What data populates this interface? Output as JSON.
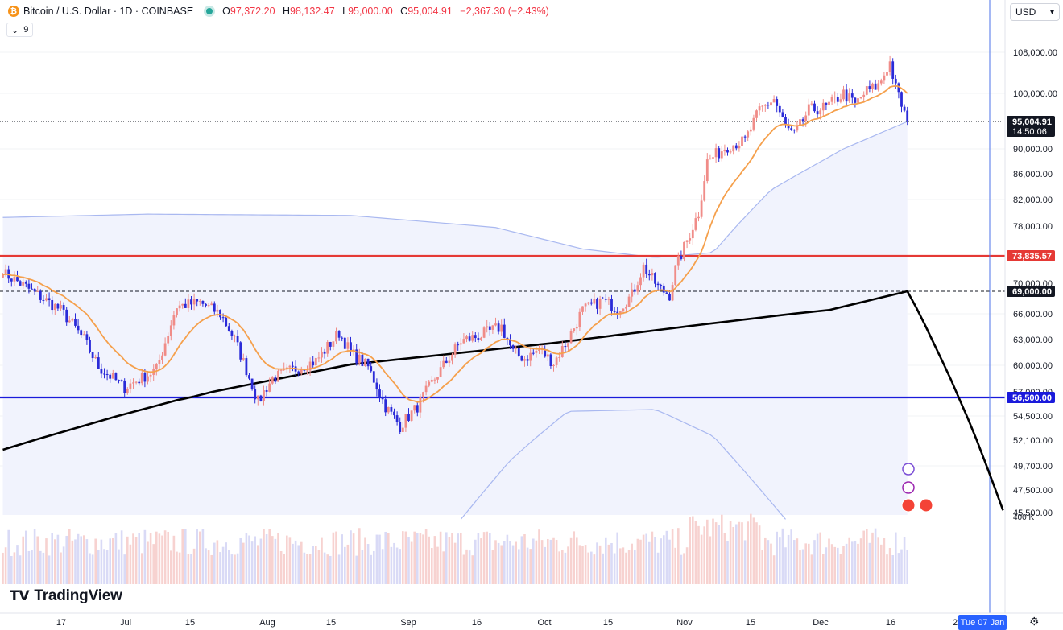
{
  "header": {
    "coin_icon": "bitcoin-icon",
    "symbol": "Bitcoin / U.S. Dollar · 1D · COINBASE",
    "status_color": "#26a69a",
    "open_key": "O",
    "open": "97,372.20",
    "high_key": "H",
    "high": "98,132.47",
    "low_key": "L",
    "low": "95,000.00",
    "close_key": "C",
    "close": "95,004.91",
    "change": "−2,367.30 (−2.43%)",
    "indicator_chevron": "chevron-down-icon",
    "indicator_count": "9"
  },
  "currency": {
    "label": "USD",
    "icon": "chevron-down-icon"
  },
  "logo": {
    "mark": "TV",
    "text": "TradingView"
  },
  "settings_icon": "gear-icon",
  "colors": {
    "up": "#f08c88",
    "down": "#2b2bd8",
    "ema": "#f5a04c",
    "ma200": "#000000",
    "bands": "#a9b8f0",
    "band_fill": "#f1f3fd",
    "resistance": "#e53935",
    "support": "#1a1adb",
    "crosshair": "#4b72e8"
  },
  "chart_data": {
    "type": "candlestick",
    "title": "Bitcoin / U.S. Dollar · 1D · COINBASE",
    "xlabel": "",
    "ylabel": "",
    "ylim": [
      44900,
      111000
    ],
    "y_ticks": [
      "108,000.00",
      "100,000.00",
      "90,000.00",
      "86,000.00",
      "82,000.00",
      "78,000.00",
      "70,000.00",
      "66,000.00",
      "63,000.00",
      "60,000.00",
      "57,000.00",
      "54,500.00",
      "52,100.00",
      "49,700.00",
      "47,500.00",
      "45,500.00"
    ],
    "volume_label": "400 K",
    "x_ticks": [
      "17",
      "Jul",
      "15",
      "Aug",
      "15",
      "Sep",
      "16",
      "Oct",
      "15",
      "Nov",
      "15",
      "Dec",
      "16",
      "2"
    ],
    "crosshair_date": "Tue 07 Jan",
    "price_labels": [
      {
        "name": "last",
        "value": 95004.91,
        "text": "95,004.91",
        "sub": "14:50:06",
        "color": "#131722"
      },
      {
        "name": "resistance",
        "value": 73835.57,
        "text": "73,835.57",
        "color": "#e53935"
      },
      {
        "name": "ath-line",
        "value": 69000,
        "text": "69,000.00",
        "color": "#131722"
      },
      {
        "name": "support",
        "value": 56500,
        "text": "56,500.00",
        "color": "#1a1adb"
      }
    ],
    "horizontal_lines": [
      {
        "name": "resistance",
        "value": 73835.57,
        "style": "solid",
        "color": "#e53935"
      },
      {
        "name": "support",
        "value": 56500,
        "style": "solid",
        "color": "#1a1adb"
      },
      {
        "name": "ath",
        "value": 69000,
        "style": "dashed",
        "color": "#131722"
      },
      {
        "name": "last",
        "value": 95004.91,
        "style": "dotted",
        "color": "#131722"
      }
    ],
    "price_anchors": [
      [
        0,
        71500
      ],
      [
        10,
        69000
      ],
      [
        20,
        66500
      ],
      [
        28,
        63000
      ],
      [
        33,
        59800
      ],
      [
        42,
        57500
      ],
      [
        53,
        59500
      ],
      [
        60,
        67000
      ],
      [
        68,
        67500
      ],
      [
        75,
        66000
      ],
      [
        80,
        63000
      ],
      [
        88,
        56000
      ],
      [
        93,
        58500
      ],
      [
        100,
        59500
      ],
      [
        108,
        60500
      ],
      [
        116,
        63800
      ],
      [
        120,
        61500
      ],
      [
        126,
        59800
      ],
      [
        132,
        55500
      ],
      [
        137,
        53500
      ],
      [
        143,
        55500
      ],
      [
        150,
        59000
      ],
      [
        158,
        62800
      ],
      [
        165,
        63500
      ],
      [
        172,
        64500
      ],
      [
        176,
        61500
      ],
      [
        180,
        60800
      ],
      [
        185,
        61800
      ],
      [
        190,
        60300
      ],
      [
        195,
        63000
      ],
      [
        200,
        66500
      ],
      [
        207,
        67800
      ],
      [
        212,
        66600
      ],
      [
        217,
        68500
      ],
      [
        221,
        72300
      ],
      [
        226,
        69500
      ],
      [
        230,
        68500
      ],
      [
        232,
        72000
      ],
      [
        236,
        76000
      ],
      [
        240,
        80000
      ],
      [
        243,
        88000
      ],
      [
        250,
        90500
      ],
      [
        256,
        91500
      ],
      [
        261,
        97000
      ],
      [
        266,
        99000
      ],
      [
        270,
        94000
      ],
      [
        273,
        92500
      ],
      [
        278,
        97000
      ],
      [
        284,
        97500
      ],
      [
        290,
        100000
      ],
      [
        294,
        98000
      ],
      [
        298,
        100500
      ],
      [
        302,
        101500
      ],
      [
        306,
        106000
      ],
      [
        308,
        101000
      ],
      [
        310,
        98000
      ],
      [
        312,
        95005
      ]
    ],
    "ma200_anchors": [
      [
        0,
        51200
      ],
      [
        60,
        56200
      ],
      [
        120,
        60100
      ],
      [
        190,
        62600
      ],
      [
        240,
        64700
      ],
      [
        285,
        66500
      ],
      [
        312,
        69000
      ],
      [
        345,
        45700
      ]
    ],
    "upper_band_anchors": [
      [
        0,
        79300
      ],
      [
        50,
        79800
      ],
      [
        120,
        79600
      ],
      [
        170,
        77800
      ],
      [
        200,
        74800
      ],
      [
        225,
        73600
      ],
      [
        245,
        74300
      ],
      [
        265,
        83500
      ],
      [
        290,
        90000
      ],
      [
        312,
        95000
      ]
    ],
    "lower_band_anchors": [
      [
        158,
        44900
      ],
      [
        175,
        50200
      ],
      [
        195,
        55000
      ],
      [
        225,
        55200
      ],
      [
        245,
        52500
      ],
      [
        270,
        44900
      ]
    ],
    "bar_count": 313
  }
}
